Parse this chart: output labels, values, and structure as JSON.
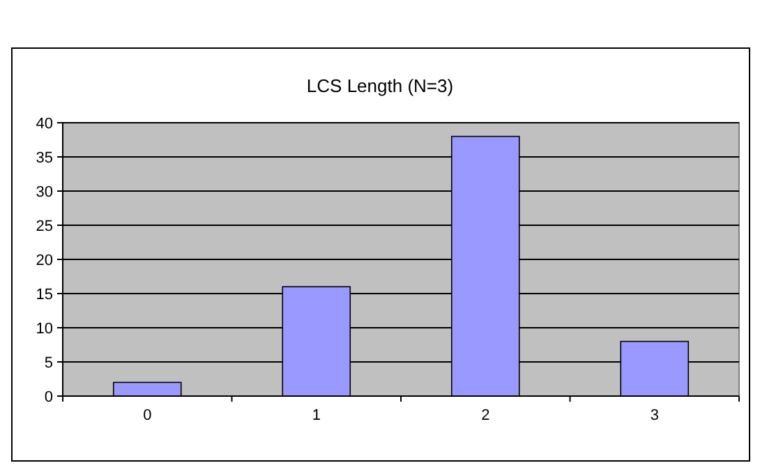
{
  "chart_data": {
    "type": "bar",
    "title": "LCS Length (N=3)",
    "categories": [
      "0",
      "1",
      "2",
      "3"
    ],
    "values": [
      2,
      16,
      38,
      8
    ],
    "color": "#9999ff",
    "ylim": [
      0,
      40
    ],
    "yticks": [
      0,
      5,
      10,
      15,
      20,
      25,
      30,
      35,
      40
    ],
    "grid": "y"
  }
}
